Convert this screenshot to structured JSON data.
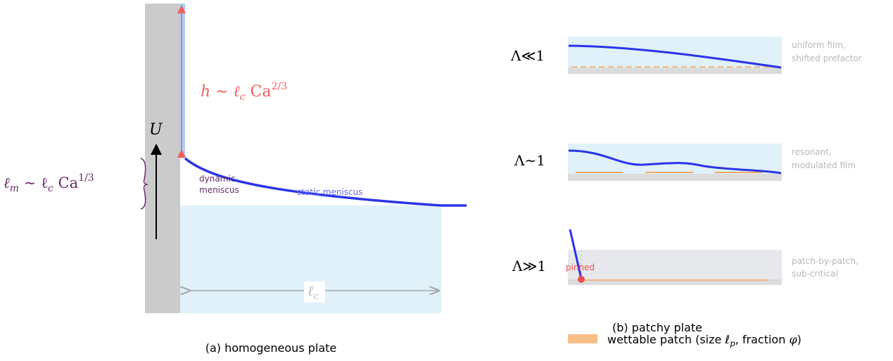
{
  "panel_a": {
    "film_label": {
      "lead": "h ∼ ℓ",
      "sub": "c",
      "mid": " Ca",
      "sup": "2/3"
    },
    "velocity_label": "U",
    "meniscus_length_label": {
      "lead": "ℓ",
      "lead_sub": "m",
      "mid": " ∼ ℓ",
      "sub": "c",
      "tail": " Ca",
      "sup": "1/3"
    },
    "dynamic_label": [
      "dynamic",
      "meniscus"
    ],
    "static_label": "static meniscus",
    "capillary_length_label": {
      "lead": "ℓ",
      "sub": "c"
    },
    "caption": "(a) homogeneous plate"
  },
  "panel_b": {
    "rows": [
      {
        "regime": "Λ≪1",
        "note": [
          "uniform film,",
          "shifted prefactor"
        ]
      },
      {
        "regime": "Λ∼1",
        "note": [
          "resonant,",
          "modulated film"
        ]
      },
      {
        "regime": "Λ≫1",
        "note": [
          "patch-by-patch,",
          "sub-critical"
        ],
        "marker": "pinned"
      }
    ],
    "caption": "(b) patchy plate",
    "legend": {
      "lead": "wettable patch (size ℓ",
      "sub": "p",
      "mid": ", fraction ",
      "sym": "φ",
      "tail": ")"
    }
  }
}
